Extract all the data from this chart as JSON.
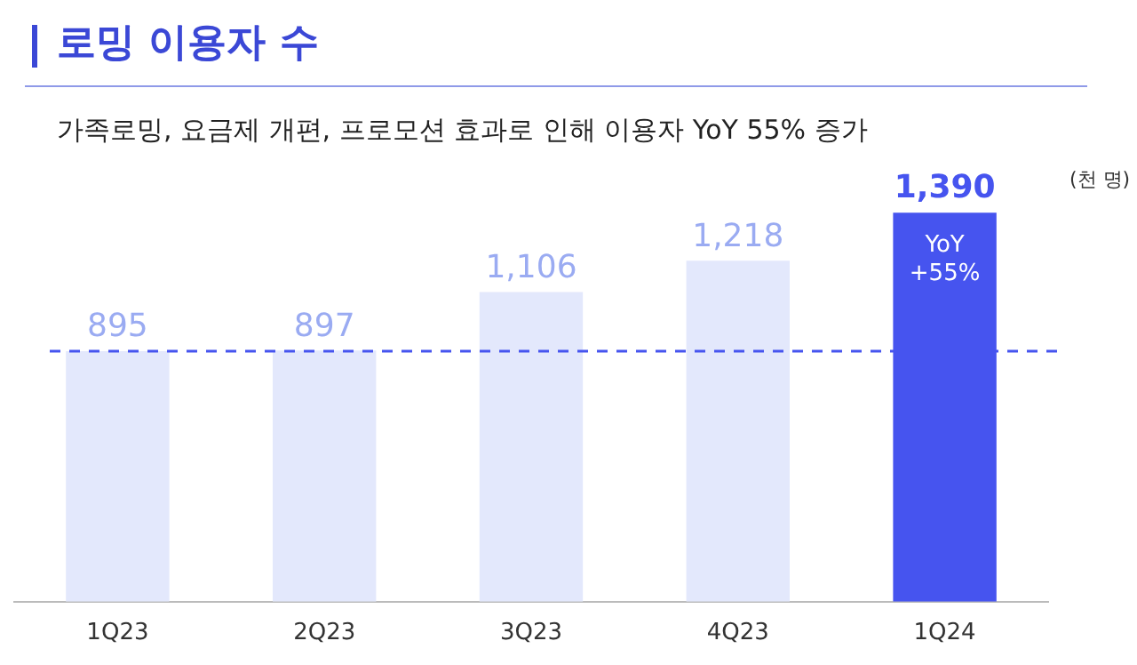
{
  "chart_data": {
    "type": "bar",
    "title": "로밍 이용자 수",
    "subtitle": "가족로밍, 요금제 개편, 프로모션 효과로 인해 이용자 YoY 55% 증가",
    "categories": [
      "1Q23",
      "2Q23",
      "3Q23",
      "4Q23",
      "1Q24"
    ],
    "values": [
      895,
      897,
      1106,
      1218,
      1390
    ],
    "colors": [
      "#e3e8fc",
      "#e3e8fc",
      "#e3e8fc",
      "#e3e8fc",
      "#4654ef"
    ],
    "value_labels": [
      "895",
      "897",
      "1,106",
      "1,218",
      "1,390"
    ],
    "ref_lines": [
      {
        "axis": "y",
        "value": 895,
        "color": "#4654ef",
        "line_style": "dashed"
      }
    ],
    "annotations": [
      "(천 명)",
      "YoY\n+55%"
    ],
    "legend": false,
    "grid": false
  }
}
